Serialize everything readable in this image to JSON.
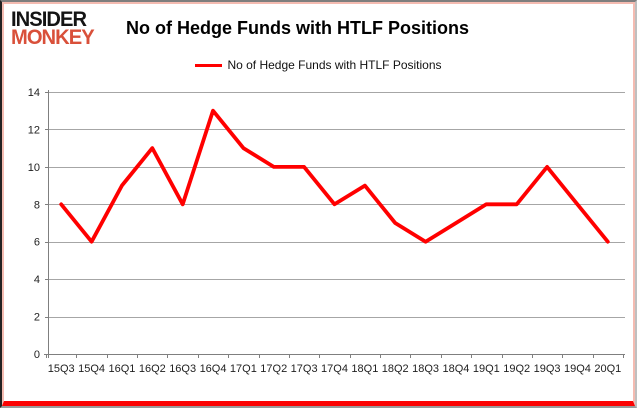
{
  "logo": {
    "line1": "INSIDER",
    "line2": "MONKEY"
  },
  "header": {
    "title": "No of Hedge Funds with HTLF Positions"
  },
  "legend": {
    "label": "No of Hedge Funds with HTLF Positions"
  },
  "chart_data": {
    "type": "line",
    "title": "No of Hedge Funds with HTLF Positions",
    "legend": "No of Hedge Funds with HTLF Positions",
    "categories": [
      "15Q3",
      "15Q4",
      "16Q1",
      "16Q2",
      "16Q3",
      "16Q4",
      "17Q1",
      "17Q2",
      "17Q3",
      "17Q4",
      "18Q1",
      "18Q2",
      "18Q3",
      "18Q4",
      "19Q1",
      "19Q2",
      "19Q3",
      "19Q4",
      "20Q1"
    ],
    "values": [
      8,
      6,
      9,
      11,
      8,
      13,
      11,
      10,
      10,
      8,
      9,
      7,
      6,
      7,
      8,
      8,
      10,
      8,
      6
    ],
    "xlabel": "",
    "ylabel": "",
    "ylim": [
      0,
      14
    ],
    "yticks": [
      0,
      2,
      4,
      6,
      8,
      10,
      12,
      14
    ],
    "grid": "horizontal",
    "legend_position": "top-center",
    "line_color": "#ff0000"
  },
  "colors": {
    "logo_red": "#d9503a",
    "line_red": "#ff0000",
    "grid": "#a6a6a6",
    "axis": "#7f7f7f",
    "text": "#1f1f1f",
    "border_pink": "#f4bbb1",
    "border_bottom_red": "#fb0202"
  }
}
